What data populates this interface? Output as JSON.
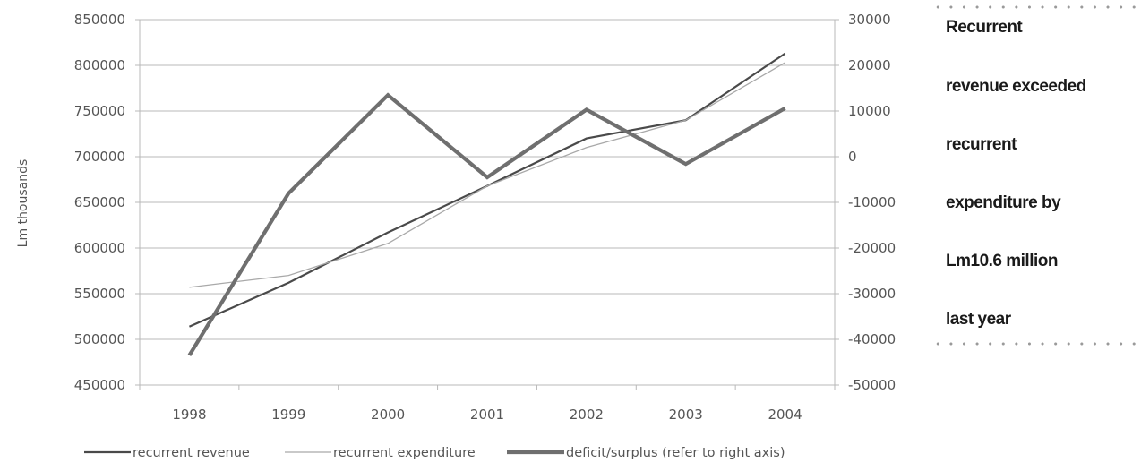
{
  "chart_data": {
    "type": "line",
    "title": "",
    "xlabel": "",
    "ylabel": "Lm thousands",
    "y2label": "",
    "categories": [
      "1998",
      "1999",
      "2000",
      "2001",
      "2002",
      "2003",
      "2004"
    ],
    "ylim": [
      450000,
      850000
    ],
    "y2lim": [
      -50000,
      30000
    ],
    "yticks": [
      "850000",
      "800000",
      "750000",
      "700000",
      "650000",
      "600000",
      "550000",
      "500000",
      "450000"
    ],
    "y2ticks": [
      "30000",
      "20000",
      "10000",
      "0",
      "-10000",
      "-20000",
      "-30000",
      "-40000",
      "-50000"
    ],
    "grid": "horizontal",
    "legend_position": "bottom",
    "series": [
      {
        "name": "recurrent revenue",
        "axis": "left",
        "color": "#4a4a4a",
        "values": [
          514000,
          562000,
          617000,
          668000,
          720000,
          740000,
          813000
        ]
      },
      {
        "name": "recurrent expenditure",
        "axis": "left",
        "color": "#a9a9a9",
        "values": [
          557000,
          570000,
          605000,
          668000,
          710000,
          740000,
          803000
        ]
      },
      {
        "name": "deficit/surplus (refer to right axis)",
        "axis": "right",
        "color": "#6f6f6f",
        "values": [
          -43500,
          -8000,
          13500,
          -4500,
          10300,
          -1600,
          10600
        ]
      }
    ]
  },
  "side_note": {
    "lines": [
      "Recurrent",
      "revenue exceeded",
      "recurrent",
      "expenditure by",
      "Lm10.6 million",
      "last year"
    ]
  }
}
